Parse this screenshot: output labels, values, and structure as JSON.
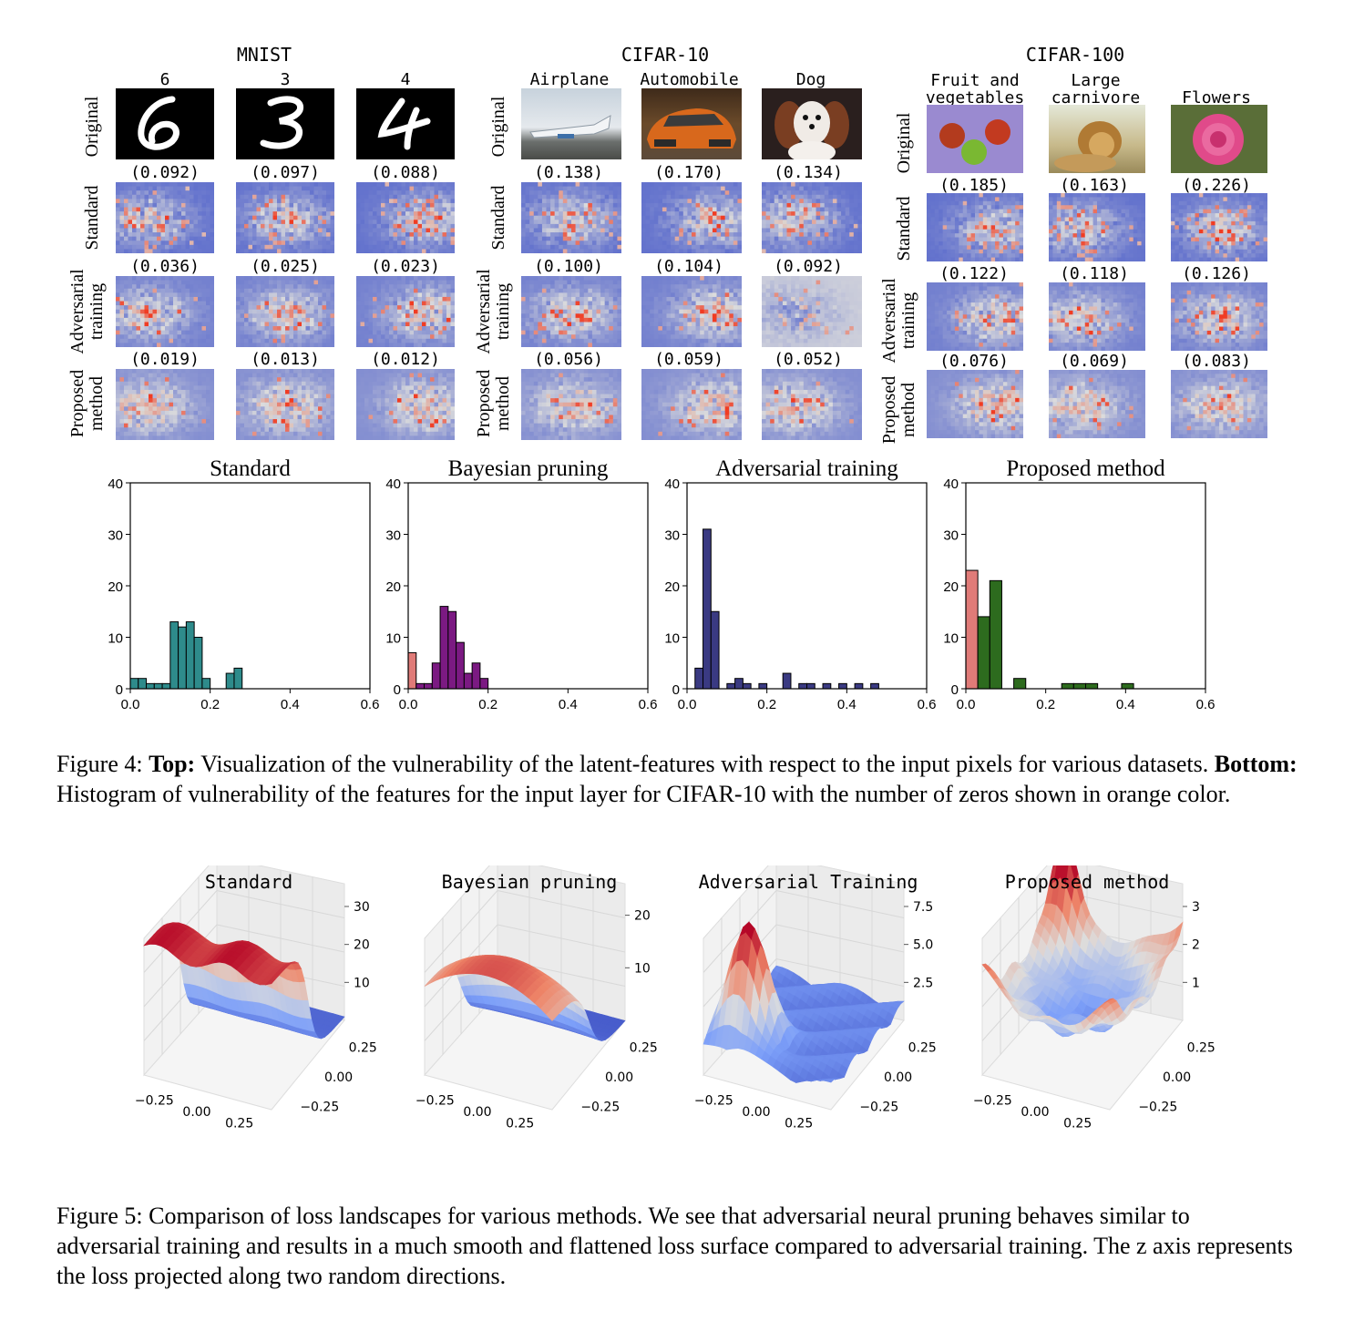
{
  "figure4": {
    "datasets": [
      {
        "title": "MNIST",
        "classes": [
          "6",
          "3",
          "4"
        ],
        "values": {
          "standard": [
            "(0.092)",
            "(0.097)",
            "(0.088)"
          ],
          "adversarial": [
            "(0.036)",
            "(0.025)",
            "(0.023)"
          ],
          "proposed": [
            "(0.019)",
            "(0.013)",
            "(0.012)"
          ]
        }
      },
      {
        "title": "CIFAR-10",
        "classes": [
          "Airplane",
          "Automobile",
          "Dog"
        ],
        "values": {
          "standard": [
            "(0.138)",
            "(0.170)",
            "(0.134)"
          ],
          "adversarial": [
            "(0.100)",
            "(0.104)",
            "(0.092)"
          ],
          "proposed": [
            "(0.056)",
            "(0.059)",
            "(0.052)"
          ]
        }
      },
      {
        "title": "CIFAR-100",
        "classes": [
          "Fruit and\nvegetables",
          "Large\ncarnivore",
          "Flowers"
        ],
        "values": {
          "standard": [
            "(0.185)",
            "(0.163)",
            "(0.226)"
          ],
          "adversarial": [
            "(0.122)",
            "(0.118)",
            "(0.126)"
          ],
          "proposed": [
            "(0.076)",
            "(0.069)",
            "(0.083)"
          ]
        }
      }
    ],
    "row_labels": {
      "original": "Original",
      "standard": "Standard",
      "adversarial": "Adversarial\ntraining",
      "proposed": "Proposed\nmethod"
    },
    "caption": {
      "label": "Figure 4:",
      "top_bold": "Top:",
      "top_text": " Visualization of the vulnerability of the latent-features with respect to the input pixels for various datasets. ",
      "bottom_bold": "Bottom:",
      "bottom_text": " Histogram of vulnerability of the features for the input layer for CIFAR-10 with the number of zeros shown in orange color."
    }
  },
  "chart_data": [
    {
      "type": "bar",
      "title": "Standard",
      "color": "#2e8b8b",
      "zero_color": "#e07b78",
      "bin_width": 0.02,
      "bins": [
        0.0,
        0.02,
        0.04,
        0.06,
        0.08,
        0.1,
        0.12,
        0.14,
        0.16,
        0.18,
        0.2,
        0.22,
        0.24,
        0.26
      ],
      "values": [
        2,
        2,
        1,
        1,
        1,
        13,
        12,
        13,
        10,
        2,
        0,
        0,
        3,
        4
      ],
      "zero_count": 0,
      "xticks": [
        "0.0",
        "0.2",
        "0.4",
        "0.6"
      ],
      "yticks": [
        "0",
        "10",
        "20",
        "30",
        "40"
      ],
      "xlim": [
        0,
        0.6
      ],
      "ylim": [
        0,
        40
      ]
    },
    {
      "type": "bar",
      "title": "Bayesian pruning",
      "color": "#7b1a82",
      "zero_color": "#e07b78",
      "bin_width": 0.02,
      "bins": [
        0.0,
        0.02,
        0.04,
        0.06,
        0.08,
        0.1,
        0.12,
        0.14,
        0.16,
        0.18,
        0.2
      ],
      "values": [
        0,
        1,
        1,
        5,
        16,
        15,
        9,
        3,
        5,
        2,
        0
      ],
      "zero_count": 7,
      "xticks": [
        "0.0",
        "0.2",
        "0.4",
        "0.6"
      ],
      "yticks": [
        "0",
        "10",
        "20",
        "30",
        "40"
      ],
      "xlim": [
        0,
        0.6
      ],
      "ylim": [
        0,
        40
      ]
    },
    {
      "type": "bar",
      "title": "Adversarial training",
      "color": "#3a3a82",
      "zero_color": "#e07b78",
      "bin_width": 0.02,
      "bins": [
        0.02,
        0.04,
        0.06,
        0.1,
        0.12,
        0.14,
        0.18,
        0.24,
        0.28,
        0.3,
        0.34,
        0.38,
        0.42,
        0.46
      ],
      "values": [
        4,
        31,
        15,
        1,
        2,
        1,
        1,
        3,
        1,
        1,
        1,
        1,
        1,
        1
      ],
      "zero_count": 0,
      "xticks": [
        "0.0",
        "0.2",
        "0.4",
        "0.6"
      ],
      "yticks": [
        "0",
        "10",
        "20",
        "30",
        "40"
      ],
      "xlim": [
        0,
        0.6
      ],
      "ylim": [
        0,
        40
      ]
    },
    {
      "type": "bar",
      "title": "Proposed method",
      "color": "#2d6b1e",
      "zero_color": "#e07b78",
      "bin_width": 0.03,
      "bins": [
        0.03,
        0.06,
        0.12,
        0.24,
        0.27,
        0.3,
        0.39
      ],
      "values": [
        14,
        21,
        2,
        1,
        1,
        1,
        1
      ],
      "zero_count": 23,
      "xticks": [
        "0.0",
        "0.2",
        "0.4",
        "0.6"
      ],
      "yticks": [
        "0",
        "10",
        "20",
        "30",
        "40"
      ],
      "xlim": [
        0,
        0.6
      ],
      "ylim": [
        0,
        40
      ]
    },
    {
      "type": "surface",
      "title": "Standard",
      "zticks": [
        "10",
        "20",
        "30"
      ],
      "xticks": [
        "−0.25",
        "0.00",
        "0.25"
      ],
      "yticks": [
        "0.25",
        "0.00",
        "−0.25"
      ]
    },
    {
      "type": "surface",
      "title": "Bayesian pruning",
      "zticks": [
        "10",
        "20"
      ],
      "xticks": [
        "−0.25",
        "0.00",
        "0.25"
      ],
      "yticks": [
        "0.25",
        "0.00",
        "−0.25"
      ]
    },
    {
      "type": "surface",
      "title": "Adversarial Training",
      "zticks": [
        "2.5",
        "5.0",
        "7.5"
      ],
      "xticks": [
        "−0.25",
        "0.00",
        "0.25"
      ],
      "yticks": [
        "0.25",
        "0.00",
        "−0.25"
      ]
    },
    {
      "type": "surface",
      "title": "Proposed method",
      "zticks": [
        "1",
        "2",
        "3"
      ],
      "xticks": [
        "−0.25",
        "0.00",
        "0.25"
      ],
      "yticks": [
        "0.25",
        "0.00",
        "−0.25"
      ]
    }
  ],
  "figure5": {
    "caption": {
      "label": "Figure 5:",
      "text": " Comparison of loss landscapes for various methods. We see that adversarial neural pruning behaves similar to adversarial training and results in a much smooth and flattened loss surface compared to adversarial training. The z axis represents the loss projected along two random directions."
    }
  }
}
